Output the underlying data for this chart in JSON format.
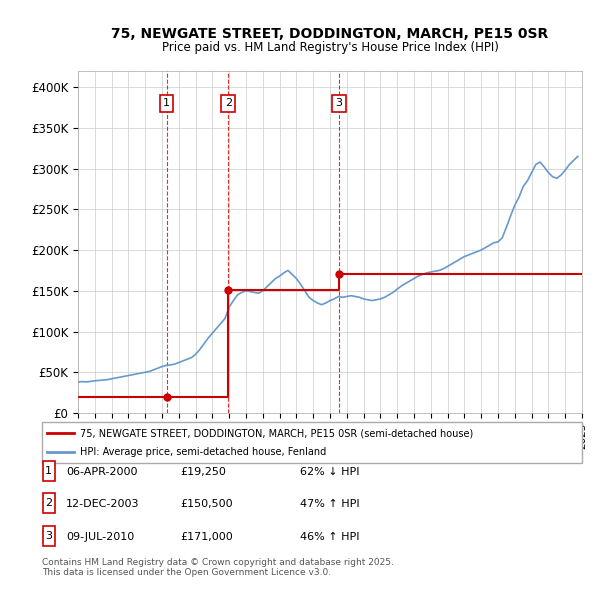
{
  "title1": "75, NEWGATE STREET, DODDINGTON, MARCH, PE15 0SR",
  "title2": "Price paid vs. HM Land Registry's House Price Index (HPI)",
  "ylabel": "",
  "ylim": [
    0,
    420000
  ],
  "yticks": [
    0,
    50000,
    100000,
    150000,
    200000,
    250000,
    300000,
    350000,
    400000
  ],
  "ytick_labels": [
    "£0",
    "£50K",
    "£100K",
    "£150K",
    "£200K",
    "£250K",
    "£300K",
    "£350K",
    "£400K"
  ],
  "transactions": [
    {
      "num": 1,
      "date_str": "06-APR-2000",
      "year": 2000.27,
      "price": 19250,
      "pct": "62%",
      "dir": "↓",
      "label": "£19,250"
    },
    {
      "num": 2,
      "date_str": "12-DEC-2003",
      "year": 2003.95,
      "price": 150500,
      "pct": "47%",
      "dir": "↑",
      "label": "£150,500"
    },
    {
      "num": 3,
      "date_str": "09-JUL-2010",
      "year": 2010.52,
      "price": 171000,
      "pct": "46%",
      "dir": "↑",
      "label": "£171,000"
    }
  ],
  "hpi_color": "#6699cc",
  "price_color": "#cc0000",
  "vline_color": "#cc0000",
  "legend_label_red": "75, NEWGATE STREET, DODDINGTON, MARCH, PE15 0SR (semi-detached house)",
  "legend_label_blue": "HPI: Average price, semi-detached house, Fenland",
  "footer": "Contains HM Land Registry data © Crown copyright and database right 2025.\nThis data is licensed under the Open Government Licence v3.0.",
  "hpi_data": {
    "years": [
      1995.0,
      1995.25,
      1995.5,
      1995.75,
      1996.0,
      1996.25,
      1996.5,
      1996.75,
      1997.0,
      1997.25,
      1997.5,
      1997.75,
      1998.0,
      1998.25,
      1998.5,
      1998.75,
      1999.0,
      1999.25,
      1999.5,
      1999.75,
      2000.0,
      2000.25,
      2000.5,
      2000.75,
      2001.0,
      2001.25,
      2001.5,
      2001.75,
      2002.0,
      2002.25,
      2002.5,
      2002.75,
      2003.0,
      2003.25,
      2003.5,
      2003.75,
      2004.0,
      2004.25,
      2004.5,
      2004.75,
      2005.0,
      2005.25,
      2005.5,
      2005.75,
      2006.0,
      2006.25,
      2006.5,
      2006.75,
      2007.0,
      2007.25,
      2007.5,
      2007.75,
      2008.0,
      2008.25,
      2008.5,
      2008.75,
      2009.0,
      2009.25,
      2009.5,
      2009.75,
      2010.0,
      2010.25,
      2010.5,
      2010.75,
      2011.0,
      2011.25,
      2011.5,
      2011.75,
      2012.0,
      2012.25,
      2012.5,
      2012.75,
      2013.0,
      2013.25,
      2013.5,
      2013.75,
      2014.0,
      2014.25,
      2014.5,
      2014.75,
      2015.0,
      2015.25,
      2015.5,
      2015.75,
      2016.0,
      2016.25,
      2016.5,
      2016.75,
      2017.0,
      2017.25,
      2017.5,
      2017.75,
      2018.0,
      2018.25,
      2018.5,
      2018.75,
      2019.0,
      2019.25,
      2019.5,
      2019.75,
      2020.0,
      2020.25,
      2020.5,
      2020.75,
      2021.0,
      2021.25,
      2021.5,
      2021.75,
      2022.0,
      2022.25,
      2022.5,
      2022.75,
      2023.0,
      2023.25,
      2023.5,
      2023.75,
      2024.0,
      2024.25,
      2024.5,
      2024.75
    ],
    "values": [
      38000,
      38500,
      38200,
      38800,
      39500,
      40000,
      40500,
      41000,
      42000,
      43000,
      44000,
      45000,
      46000,
      47000,
      48000,
      49000,
      50000,
      51000,
      53000,
      55000,
      57000,
      58500,
      59000,
      60000,
      62000,
      64000,
      66000,
      68000,
      72000,
      78000,
      85000,
      92000,
      98000,
      104000,
      110000,
      116000,
      130000,
      138000,
      145000,
      148000,
      150000,
      149000,
      148000,
      147000,
      150000,
      155000,
      160000,
      165000,
      168000,
      172000,
      175000,
      170000,
      165000,
      158000,
      150000,
      142000,
      138000,
      135000,
      133000,
      135000,
      138000,
      140000,
      143000,
      142000,
      143000,
      144000,
      143000,
      142000,
      140000,
      139000,
      138000,
      139000,
      140000,
      142000,
      145000,
      148000,
      152000,
      156000,
      159000,
      162000,
      165000,
      168000,
      170000,
      172000,
      173000,
      174000,
      175000,
      177000,
      180000,
      183000,
      186000,
      189000,
      192000,
      194000,
      196000,
      198000,
      200000,
      203000,
      206000,
      209000,
      210000,
      215000,
      228000,
      242000,
      255000,
      265000,
      278000,
      285000,
      295000,
      305000,
      308000,
      302000,
      295000,
      290000,
      288000,
      292000,
      298000,
      305000,
      310000,
      315000
    ]
  },
  "price_line_data": {
    "years": [
      1995.0,
      2000.27,
      2000.27,
      2003.95,
      2003.95,
      2010.52,
      2010.52,
      2025.0
    ],
    "values": [
      19250,
      19250,
      19250,
      150500,
      150500,
      171000,
      171000,
      171000
    ]
  }
}
